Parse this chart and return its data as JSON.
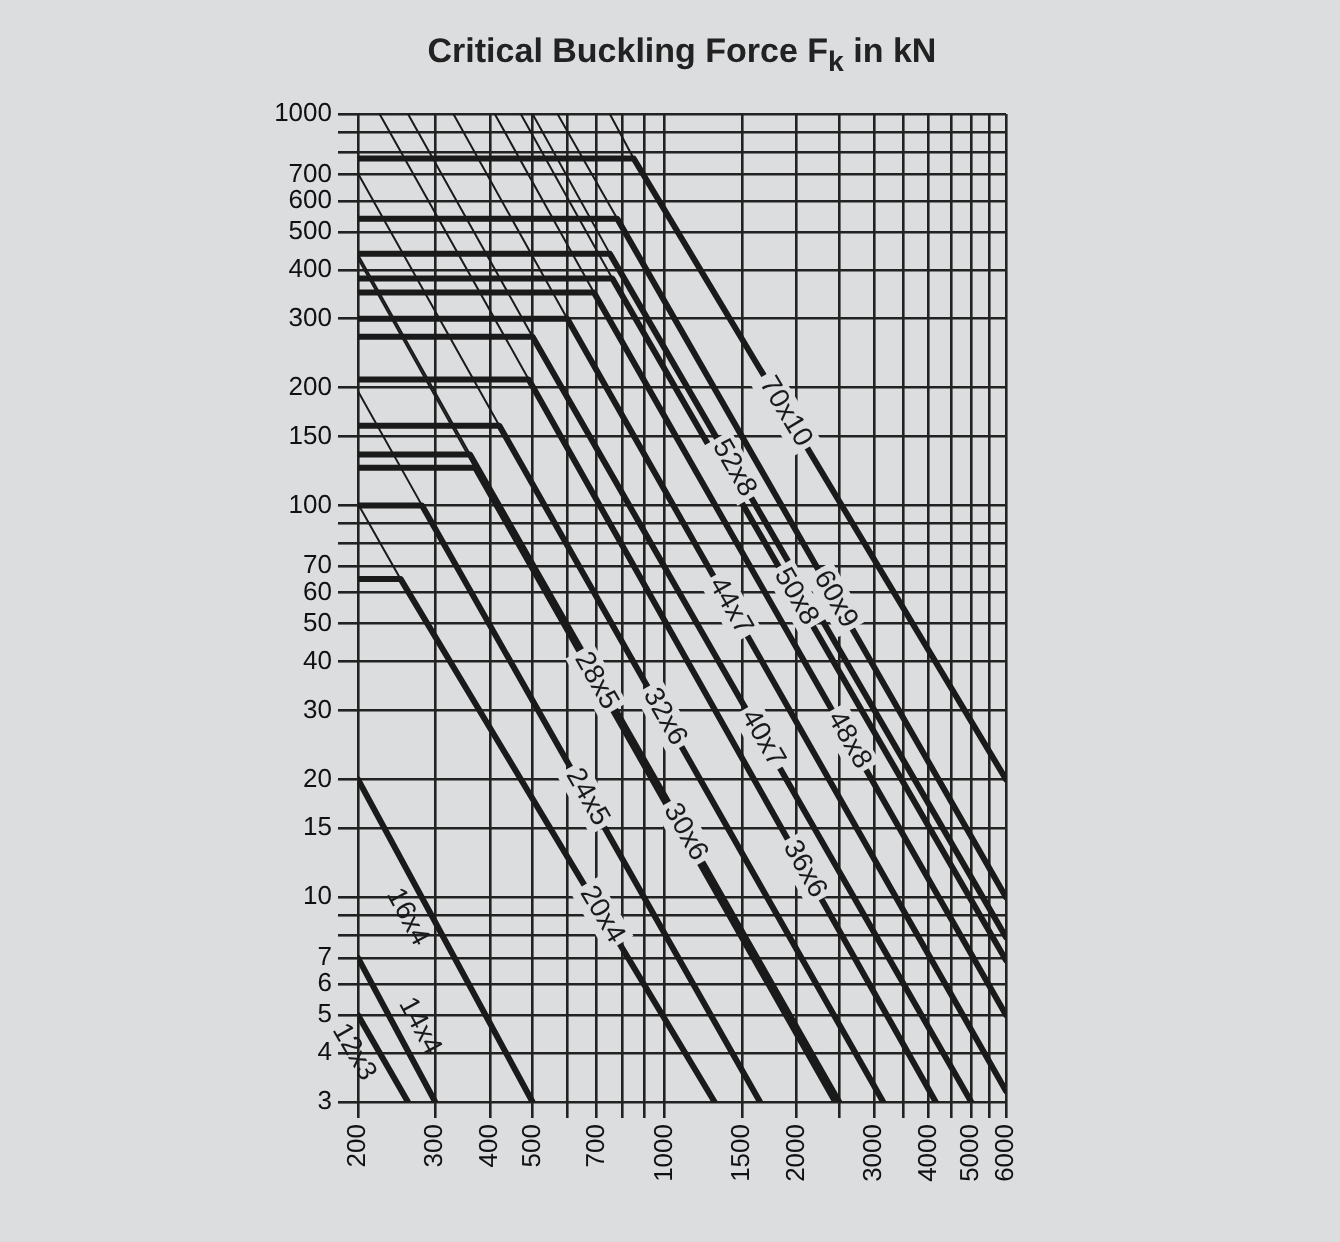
{
  "chart_data": {
    "type": "line",
    "title": "Critical Buckling Force F$_{k}$ in kN",
    "log": "xy",
    "grid": true,
    "legend": false,
    "marker": "none",
    "line_style": "solid",
    "xlim": [
      200,
      6000
    ],
    "ylim": [
      3,
      1000
    ],
    "xticks": [
      200,
      300,
      400,
      500,
      {
        "value": 600,
        "label": null
      },
      700,
      {
        "value": 800,
        "label": null
      },
      {
        "value": 900,
        "label": null
      },
      1000,
      1500,
      2000,
      {
        "value": 2500,
        "label": null
      },
      3000,
      {
        "value": 3500,
        "label": null
      },
      4000,
      {
        "value": 4500,
        "label": null
      },
      5000,
      {
        "value": 5500,
        "label": null
      },
      6000
    ],
    "yticks": [
      1000,
      {
        "value": 900,
        "label": null
      },
      {
        "value": 800,
        "label": null
      },
      700,
      600,
      500,
      400,
      300,
      200,
      150,
      100,
      {
        "value": 90,
        "label": null
      },
      {
        "value": 80,
        "label": null
      },
      70,
      60,
      50,
      40,
      30,
      20,
      15,
      10,
      {
        "value": 9,
        "label": null
      },
      {
        "value": 8,
        "label": null
      },
      7,
      6,
      5,
      4,
      3
    ],
    "series": [
      {
        "name": "12x3",
        "color": "#1a1a1a",
        "x": [
          200,
          260
        ],
        "values": [
          5,
          3
        ]
      },
      {
        "name": "14x4",
        "color": "#1a1a1a",
        "x": [
          200,
          300
        ],
        "values": [
          7,
          3
        ]
      },
      {
        "name": "16x4",
        "color": "#1a1a1a",
        "x": [
          200,
          500
        ],
        "values": [
          20,
          3
        ]
      },
      {
        "name": "20x4",
        "color": "#1a1a1a",
        "x": [
          200,
          250,
          1300
        ],
        "values": [
          65,
          65,
          3
        ]
      },
      {
        "name": "24x5",
        "color": "#1a1a1a",
        "x": [
          200,
          280,
          1650
        ],
        "values": [
          100,
          100,
          3
        ]
      },
      {
        "name": "28x5",
        "color": "#1a1a1a",
        "x": [
          200,
          370,
          2450
        ],
        "values": [
          125,
          125,
          3
        ]
      },
      {
        "name": "30x6",
        "color": "#1a1a1a",
        "x": [
          200,
          360,
          2500
        ],
        "values": [
          135,
          135,
          3
        ]
      },
      {
        "name": "32x6",
        "color": "#1a1a1a",
        "x": [
          200,
          420,
          3150
        ],
        "values": [
          160,
          160,
          3
        ]
      },
      {
        "name": "36x6",
        "color": "#1a1a1a",
        "x": [
          200,
          490,
          4150
        ],
        "values": [
          210,
          210,
          3
        ]
      },
      {
        "name": "40x7",
        "color": "#1a1a1a",
        "x": [
          200,
          500,
          5000
        ],
        "values": [
          270,
          270,
          3
        ]
      },
      {
        "name": "44x7",
        "color": "#1a1a1a",
        "x": [
          200,
          600,
          6000
        ],
        "values": [
          300,
          300,
          3.2
        ]
      },
      {
        "name": "48x8",
        "color": "#1a1a1a",
        "x": [
          200,
          690,
          6000
        ],
        "values": [
          350,
          350,
          5
        ]
      },
      {
        "name": "50x8",
        "color": "#1a1a1a",
        "x": [
          200,
          760,
          6000
        ],
        "values": [
          380,
          380,
          6.9
        ]
      },
      {
        "name": "52x8",
        "color": "#1a1a1a",
        "x": [
          200,
          750,
          6000
        ],
        "values": [
          440,
          440,
          7.9
        ]
      },
      {
        "name": "60x9",
        "color": "#1a1a1a",
        "x": [
          200,
          780,
          6000
        ],
        "values": [
          540,
          540,
          10
        ]
      },
      {
        "name": "70x10",
        "color": "#1a1a1a",
        "x": [
          200,
          850,
          6000
        ],
        "values": [
          770,
          770,
          20
        ]
      },
      {
        "color": "#1a1a1a",
        "x": [
          200,
          250
        ],
        "values": [
          101,
          65
        ]
      },
      {
        "color": "#1a1a1a",
        "x": [
          200,
          280
        ],
        "values": [
          196,
          100
        ]
      },
      {
        "color": "#1a1a1a",
        "x": [
          200,
          370
        ],
        "values": [
          428,
          125
        ]
      },
      {
        "color": "#1a1a1a",
        "x": [
          200,
          360
        ],
        "values": [
          437,
          135
        ]
      },
      {
        "color": "#1a1a1a",
        "x": [
          200,
          420
        ],
        "values": [
          705,
          160
        ]
      },
      {
        "color": "#1a1a1a",
        "x": [
          224,
          490
        ],
        "values": [
          1000,
          210
        ]
      },
      {
        "color": "#1a1a1a",
        "x": [
          260,
          500
        ],
        "values": [
          1000,
          270
        ]
      },
      {
        "color": "#1a1a1a",
        "x": [
          330,
          600
        ],
        "values": [
          1000,
          300
        ]
      },
      {
        "color": "#1a1a1a",
        "x": [
          410,
          690
        ],
        "values": [
          1000,
          350
        ]
      },
      {
        "color": "#1a1a1a",
        "x": [
          470,
          760
        ],
        "values": [
          1000,
          380
        ]
      },
      {
        "color": "#1a1a1a",
        "x": [
          500,
          750
        ],
        "values": [
          1000,
          440
        ]
      },
      {
        "color": "#1a1a1a",
        "x": [
          570,
          780
        ],
        "values": [
          1000,
          540
        ]
      },
      {
        "color": "#1a1a1a",
        "x": [
          750,
          850
        ],
        "values": [
          1000,
          770
        ]
      }
    ]
  }
}
